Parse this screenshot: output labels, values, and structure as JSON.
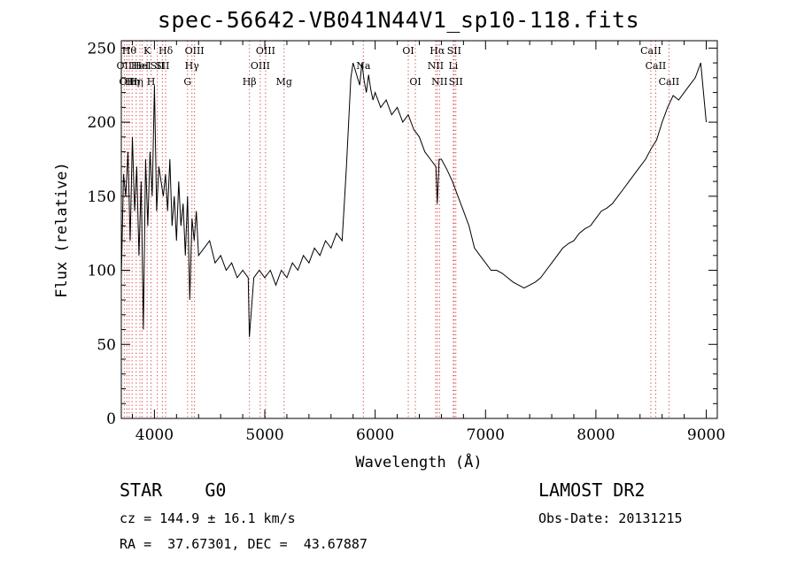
{
  "chart_data": {
    "type": "line",
    "title": "spec-56642-VB041N44V1_sp10-118.fits",
    "xlabel": "Wavelength (Å)",
    "ylabel": "Flux (relative)",
    "xlim": [
      3700,
      9100
    ],
    "ylim": [
      0,
      255
    ],
    "xticks": [
      4000,
      5000,
      6000,
      7000,
      8000,
      9000
    ],
    "yticks": [
      0,
      50,
      100,
      150,
      200,
      250
    ],
    "grid": false,
    "series": [
      {
        "x": [
          3700,
          3720,
          3740,
          3760,
          3780,
          3800,
          3820,
          3840,
          3860,
          3880,
          3900,
          3920,
          3940,
          3960,
          3980,
          4000,
          4020,
          4040,
          4060,
          4080,
          4100,
          4120,
          4140,
          4160,
          4180,
          4200,
          4220,
          4240,
          4260,
          4280,
          4300,
          4320,
          4340,
          4360,
          4380,
          4400,
          4450,
          4500,
          4550,
          4600,
          4650,
          4700,
          4750,
          4800,
          4850,
          4860,
          4900,
          4950,
          5000,
          5050,
          5100,
          5150,
          5200,
          5250,
          5300,
          5350,
          5400,
          5450,
          5500,
          5550,
          5600,
          5650,
          5700,
          5720,
          5740,
          5760,
          5780,
          5800,
          5820,
          5840,
          5860,
          5880,
          5900,
          5920,
          5940,
          5960,
          5980,
          6000,
          6050,
          6100,
          6150,
          6200,
          6250,
          6300,
          6350,
          6400,
          6450,
          6500,
          6550,
          6563,
          6580,
          6600,
          6650,
          6700,
          6750,
          6800,
          6850,
          6900,
          6950,
          7000,
          7050,
          7100,
          7150,
          7200,
          7250,
          7300,
          7350,
          7400,
          7450,
          7500,
          7550,
          7600,
          7650,
          7700,
          7750,
          7800,
          7850,
          7900,
          7950,
          8000,
          8050,
          8100,
          8150,
          8200,
          8250,
          8300,
          8350,
          8400,
          8450,
          8500,
          8550,
          8600,
          8650,
          8700,
          8750,
          8800,
          8850,
          8900,
          8950,
          9000
        ],
        "y": [
          95,
          165,
          150,
          180,
          120,
          190,
          140,
          170,
          110,
          160,
          60,
          175,
          130,
          180,
          150,
          225,
          140,
          170,
          160,
          150,
          165,
          140,
          175,
          130,
          150,
          120,
          160,
          130,
          145,
          110,
          150,
          80,
          135,
          120,
          140,
          110,
          115,
          120,
          105,
          110,
          100,
          105,
          95,
          100,
          95,
          55,
          95,
          100,
          95,
          100,
          90,
          100,
          95,
          105,
          100,
          110,
          105,
          115,
          110,
          120,
          115,
          125,
          120,
          145,
          170,
          200,
          230,
          240,
          235,
          230,
          225,
          240,
          228,
          220,
          232,
          222,
          215,
          220,
          210,
          215,
          205,
          210,
          200,
          205,
          195,
          190,
          180,
          175,
          170,
          145,
          175,
          175,
          168,
          160,
          150,
          140,
          130,
          115,
          110,
          105,
          100,
          100,
          98,
          95,
          92,
          90,
          88,
          90,
          92,
          95,
          100,
          105,
          110,
          115,
          118,
          120,
          125,
          128,
          130,
          135,
          140,
          142,
          145,
          150,
          155,
          160,
          165,
          170,
          175,
          182,
          188,
          200,
          210,
          218,
          215,
          220,
          225,
          230,
          240,
          200
        ]
      }
    ],
    "lines": [
      {
        "w": 3727,
        "label": "OII",
        "row": 1
      },
      {
        "w": 3750,
        "label": "OII",
        "row": 2
      },
      {
        "w": 3771,
        "label": "Hθ",
        "row": 0
      },
      {
        "w": 3798,
        "label": "Hη",
        "row": 2
      },
      {
        "w": 3835,
        "label": "Hη",
        "row": 2
      },
      {
        "w": 3869,
        "label": "HeI",
        "row": 1
      },
      {
        "w": 3889,
        "label": "HeI",
        "row": 1
      },
      {
        "w": 3934,
        "label": "K",
        "row": 0
      },
      {
        "w": 3969,
        "label": "H",
        "row": 2
      },
      {
        "w": 4026,
        "label": "SII",
        "row": 1
      },
      {
        "w": 4072,
        "label": "SII",
        "row": 1
      },
      {
        "w": 4102,
        "label": "Hδ",
        "row": 0
      },
      {
        "w": 4300,
        "label": "G",
        "row": 2
      },
      {
        "w": 4340,
        "label": "Hγ",
        "row": 1
      },
      {
        "w": 4363,
        "label": "OIII",
        "row": 0
      },
      {
        "w": 4861,
        "label": "Hβ",
        "row": 2
      },
      {
        "w": 4959,
        "label": "OIII",
        "row": 1
      },
      {
        "w": 5007,
        "label": "OIII",
        "row": 0
      },
      {
        "w": 5175,
        "label": "Mg",
        "row": 2
      },
      {
        "w": 5893,
        "label": "Na",
        "row": 1
      },
      {
        "w": 6300,
        "label": "OI",
        "row": 0
      },
      {
        "w": 6364,
        "label": "OI",
        "row": 2
      },
      {
        "w": 6548,
        "label": "NII",
        "row": 1
      },
      {
        "w": 6563,
        "label": "Hα",
        "row": 0
      },
      {
        "w": 6583,
        "label": "NII",
        "row": 2
      },
      {
        "w": 6708,
        "label": "Li",
        "row": 1
      },
      {
        "w": 6716,
        "label": "SII",
        "row": 0
      },
      {
        "w": 6731,
        "label": "SII",
        "row": 2
      },
      {
        "w": 8498,
        "label": "CaII",
        "row": 0
      },
      {
        "w": 8542,
        "label": "CaII",
        "row": 1
      },
      {
        "w": 8662,
        "label": "CaII",
        "row": 2
      }
    ]
  },
  "info": {
    "class": "STAR    G0",
    "survey": "LAMOST DR2",
    "cz": "cz = 144.9 ± 16.1 km/s",
    "obs_date": "Obs-Date: 20131215",
    "radec": "RA =  37.67301, DEC =  43.67887"
  },
  "colors": {
    "line_marker": "#d63a3a",
    "axes": "#000000",
    "spectrum": "#000000"
  }
}
